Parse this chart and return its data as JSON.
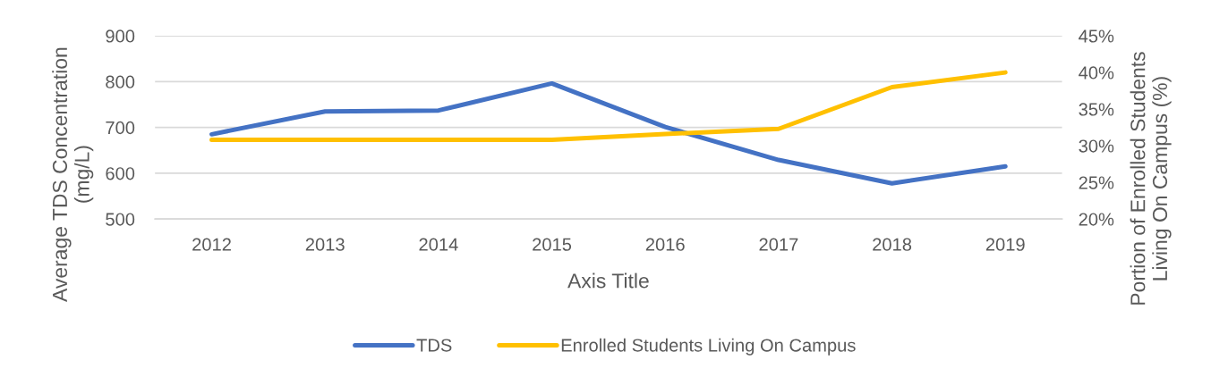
{
  "chart_data": {
    "type": "line",
    "categories": [
      "2012",
      "2013",
      "2014",
      "2015",
      "2016",
      "2017",
      "2018",
      "2019"
    ],
    "series": [
      {
        "name": "TDS",
        "color": "#4472c4",
        "values": [
          685,
          735,
          737,
          796,
          701,
          629,
          578,
          615
        ]
      },
      {
        "name": "Enrolled Students Living On Campus",
        "color": "#ffc000",
        "axis": "y2",
        "values": [
          30.8,
          30.8,
          30.8,
          30.8,
          31.6,
          32.3,
          38.0,
          40.0
        ]
      }
    ],
    "xlabel": "Axis Title",
    "ylabel": "Average TDS Concentration\n(mg/L)",
    "y2label": "Portion of Enrolled Students\nLiving On Campus (%)",
    "ylim": [
      500,
      900
    ],
    "yticks": [
      500,
      600,
      700,
      800,
      900
    ],
    "y2lim": [
      20,
      45
    ],
    "y2ticks": [
      {
        "value": 20,
        "label": "20%"
      },
      {
        "value": 25,
        "label": "25%"
      },
      {
        "value": 30,
        "label": "30%"
      },
      {
        "value": 35,
        "label": "35%"
      },
      {
        "value": 40,
        "label": "40%"
      },
      {
        "value": 45,
        "label": "45%"
      }
    ],
    "grid": "y",
    "legend": "bottom",
    "marker": "none",
    "line_style": "solid"
  }
}
